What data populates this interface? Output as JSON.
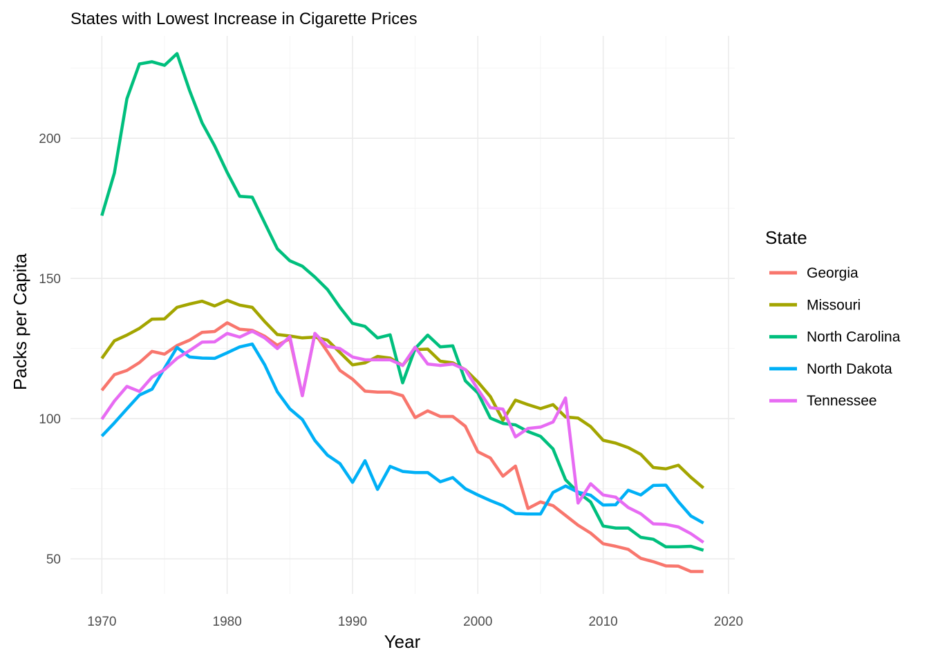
{
  "chart_data": {
    "type": "line",
    "title": "States with Lowest Increase in Cigarette Prices",
    "xlabel": "Year",
    "ylabel": "Packs per Capita",
    "xlim": [
      1967.5,
      2020.5
    ],
    "ylim": [
      37.5,
      236.5
    ],
    "x_ticks": [
      1970,
      1980,
      1990,
      2000,
      2010,
      2020
    ],
    "y_ticks": [
      50,
      100,
      150,
      200
    ],
    "grid": true,
    "legend": {
      "title": "State",
      "position": "right"
    },
    "x": [
      1970,
      1971,
      1972,
      1973,
      1974,
      1975,
      1976,
      1977,
      1978,
      1979,
      1980,
      1981,
      1982,
      1983,
      1984,
      1985,
      1986,
      1987,
      1988,
      1989,
      1990,
      1991,
      1992,
      1993,
      1994,
      1995,
      1996,
      1997,
      1998,
      1999,
      2000,
      2001,
      2002,
      2003,
      2004,
      2005,
      2006,
      2007,
      2008,
      2009,
      2010,
      2011,
      2012,
      2013,
      2014,
      2015,
      2016,
      2017,
      2018
    ],
    "series": [
      {
        "name": "Georgia",
        "color": "#F8766D",
        "values": [
          110.1,
          115.7,
          117.2,
          120.0,
          124.0,
          123.0,
          126.1,
          128.0,
          130.8,
          131.1,
          134.2,
          131.9,
          131.5,
          129.4,
          126.2,
          128.5,
          108.2,
          130.4,
          123.9,
          117.2,
          114.1,
          109.8,
          109.5,
          109.5,
          108.2,
          100.4,
          102.8,
          100.8,
          100.8,
          97.3,
          88.2,
          86.0,
          79.5,
          83.1,
          68.0,
          70.3,
          69.0,
          65.5,
          62.0,
          59.2,
          55.4,
          54.5,
          53.4,
          50.2,
          49.0,
          47.5,
          47.4,
          45.5,
          45.5
        ]
      },
      {
        "name": "Missouri",
        "color": "#A3A500",
        "values": [
          121.5,
          127.8,
          129.8,
          132.2,
          135.5,
          135.6,
          139.7,
          140.9,
          141.9,
          140.2,
          142.2,
          140.5,
          139.7,
          134.6,
          130.0,
          129.5,
          128.8,
          129.1,
          128.0,
          123.6,
          119.2,
          119.9,
          122.2,
          121.6,
          119.0,
          124.6,
          124.8,
          120.5,
          119.9,
          117.5,
          113.1,
          107.9,
          99.4,
          106.6,
          105.0,
          103.6,
          105.0,
          100.6,
          100.2,
          97.2,
          92.3,
          91.3,
          89.7,
          87.3,
          82.6,
          82.1,
          83.4,
          79.1,
          75.3
        ]
      },
      {
        "name": "North Carolina",
        "color": "#00BF7D",
        "values": [
          172.4,
          187.6,
          214.1,
          226.5,
          227.3,
          226.0,
          230.2,
          217.0,
          205.5,
          197.3,
          187.8,
          179.3,
          179.0,
          169.8,
          160.6,
          156.3,
          154.4,
          150.5,
          146.1,
          139.7,
          134.0,
          132.9,
          128.8,
          129.9,
          112.8,
          125.0,
          129.8,
          125.6,
          126.0,
          113.5,
          109.2,
          100.2,
          98.3,
          97.8,
          95.4,
          93.7,
          89.2,
          78.2,
          73.7,
          70.3,
          61.7,
          61.0,
          61.0,
          57.7,
          57.0,
          54.3,
          54.3,
          54.5,
          53.1
        ]
      },
      {
        "name": "North Dakota",
        "color": "#00B0F6",
        "values": [
          93.8,
          98.5,
          103.5,
          108.4,
          110.5,
          118.0,
          125.4,
          122.0,
          121.6,
          121.5,
          123.5,
          125.6,
          126.6,
          119.2,
          109.6,
          103.5,
          99.7,
          92.2,
          87.0,
          84.0,
          77.3,
          85.0,
          74.8,
          83.0,
          81.2,
          80.8,
          80.8,
          77.5,
          79.0,
          75.0,
          72.8,
          70.8,
          69.0,
          66.2,
          66.0,
          66.0,
          73.7,
          76.0,
          73.8,
          72.7,
          69.2,
          69.3,
          74.5,
          72.8,
          76.2,
          76.3,
          70.4,
          65.3,
          62.8
        ]
      },
      {
        "name": "Tennessee",
        "color": "#E76BF3",
        "values": [
          99.8,
          106.3,
          111.5,
          109.7,
          114.8,
          117.5,
          121.5,
          124.3,
          127.3,
          127.4,
          130.4,
          129.1,
          131.2,
          128.8,
          125.0,
          129.3,
          108.2,
          130.4,
          125.8,
          125.0,
          122.0,
          121.0,
          121.0,
          121.0,
          119.0,
          125.5,
          119.5,
          119.0,
          119.5,
          117.5,
          110.5,
          103.9,
          103.4,
          93.5,
          96.5,
          97.0,
          98.8,
          107.4,
          69.9,
          76.8,
          72.8,
          72.0,
          68.3,
          66.1,
          62.5,
          62.3,
          61.4,
          59.0,
          55.9
        ]
      }
    ]
  }
}
